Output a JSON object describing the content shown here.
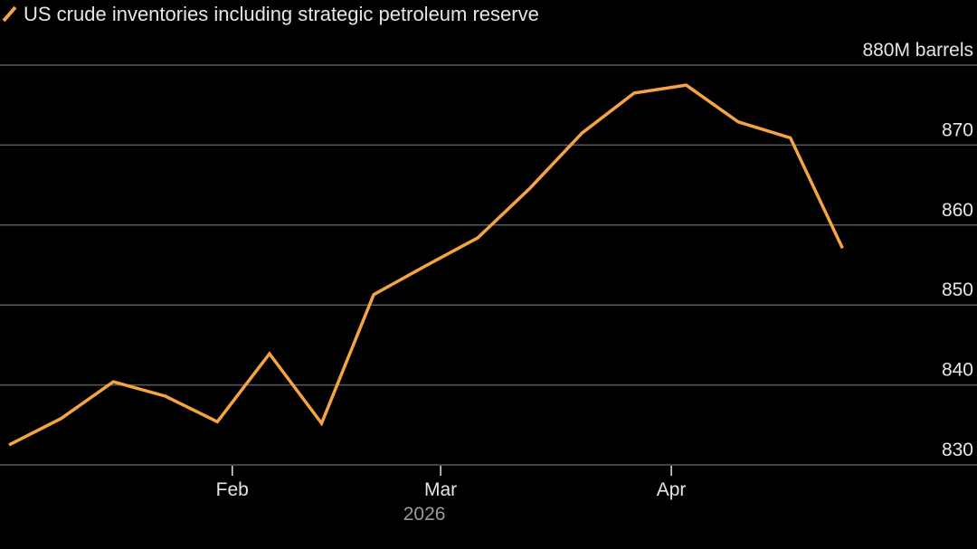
{
  "colors": {
    "background": "#000000",
    "line": "#f5a443",
    "grid": "#5a5a5a",
    "text": "#e6e6e6",
    "muted_text": "#9a9a9a"
  },
  "chart_data": {
    "type": "line",
    "legend": {
      "placement": "top-left"
    },
    "grid": true,
    "y_axis": {
      "side": "right",
      "unit_label": "880M barrels",
      "ylim": [
        830,
        880
      ],
      "ticks": [
        830,
        840,
        850,
        860,
        870,
        880
      ]
    },
    "x_axis": {
      "tick_labels": [
        {
          "label": "Feb",
          "date": "2026-02-01"
        },
        {
          "label": "Mar",
          "date": "2026-03-01"
        },
        {
          "label": "Apr",
          "date": "2026-04-01"
        }
      ],
      "year_label": "2026",
      "xlim": [
        "2026-01-02",
        "2026-05-06"
      ]
    },
    "series": [
      {
        "name": "US crude inventories including strategic petroleum reserve",
        "points": [
          {
            "x": "2026-01-02",
            "y": 832.5
          },
          {
            "x": "2026-01-09",
            "y": 835.8
          },
          {
            "x": "2026-01-16",
            "y": 840.4
          },
          {
            "x": "2026-01-23",
            "y": 838.6
          },
          {
            "x": "2026-01-30",
            "y": 835.4
          },
          {
            "x": "2026-02-06",
            "y": 843.9
          },
          {
            "x": "2026-02-13",
            "y": 835.2
          },
          {
            "x": "2026-02-20",
            "y": 851.3
          },
          {
            "x": "2026-02-27",
            "y": 854.9
          },
          {
            "x": "2026-03-06",
            "y": 858.4
          },
          {
            "x": "2026-03-13",
            "y": 864.6
          },
          {
            "x": "2026-03-20",
            "y": 871.5
          },
          {
            "x": "2026-03-27",
            "y": 876.5
          },
          {
            "x": "2026-04-03",
            "y": 877.5
          },
          {
            "x": "2026-04-10",
            "y": 872.9
          },
          {
            "x": "2026-04-17",
            "y": 870.9
          },
          {
            "x": "2026-04-24",
            "y": 857.1
          }
        ]
      }
    ]
  }
}
